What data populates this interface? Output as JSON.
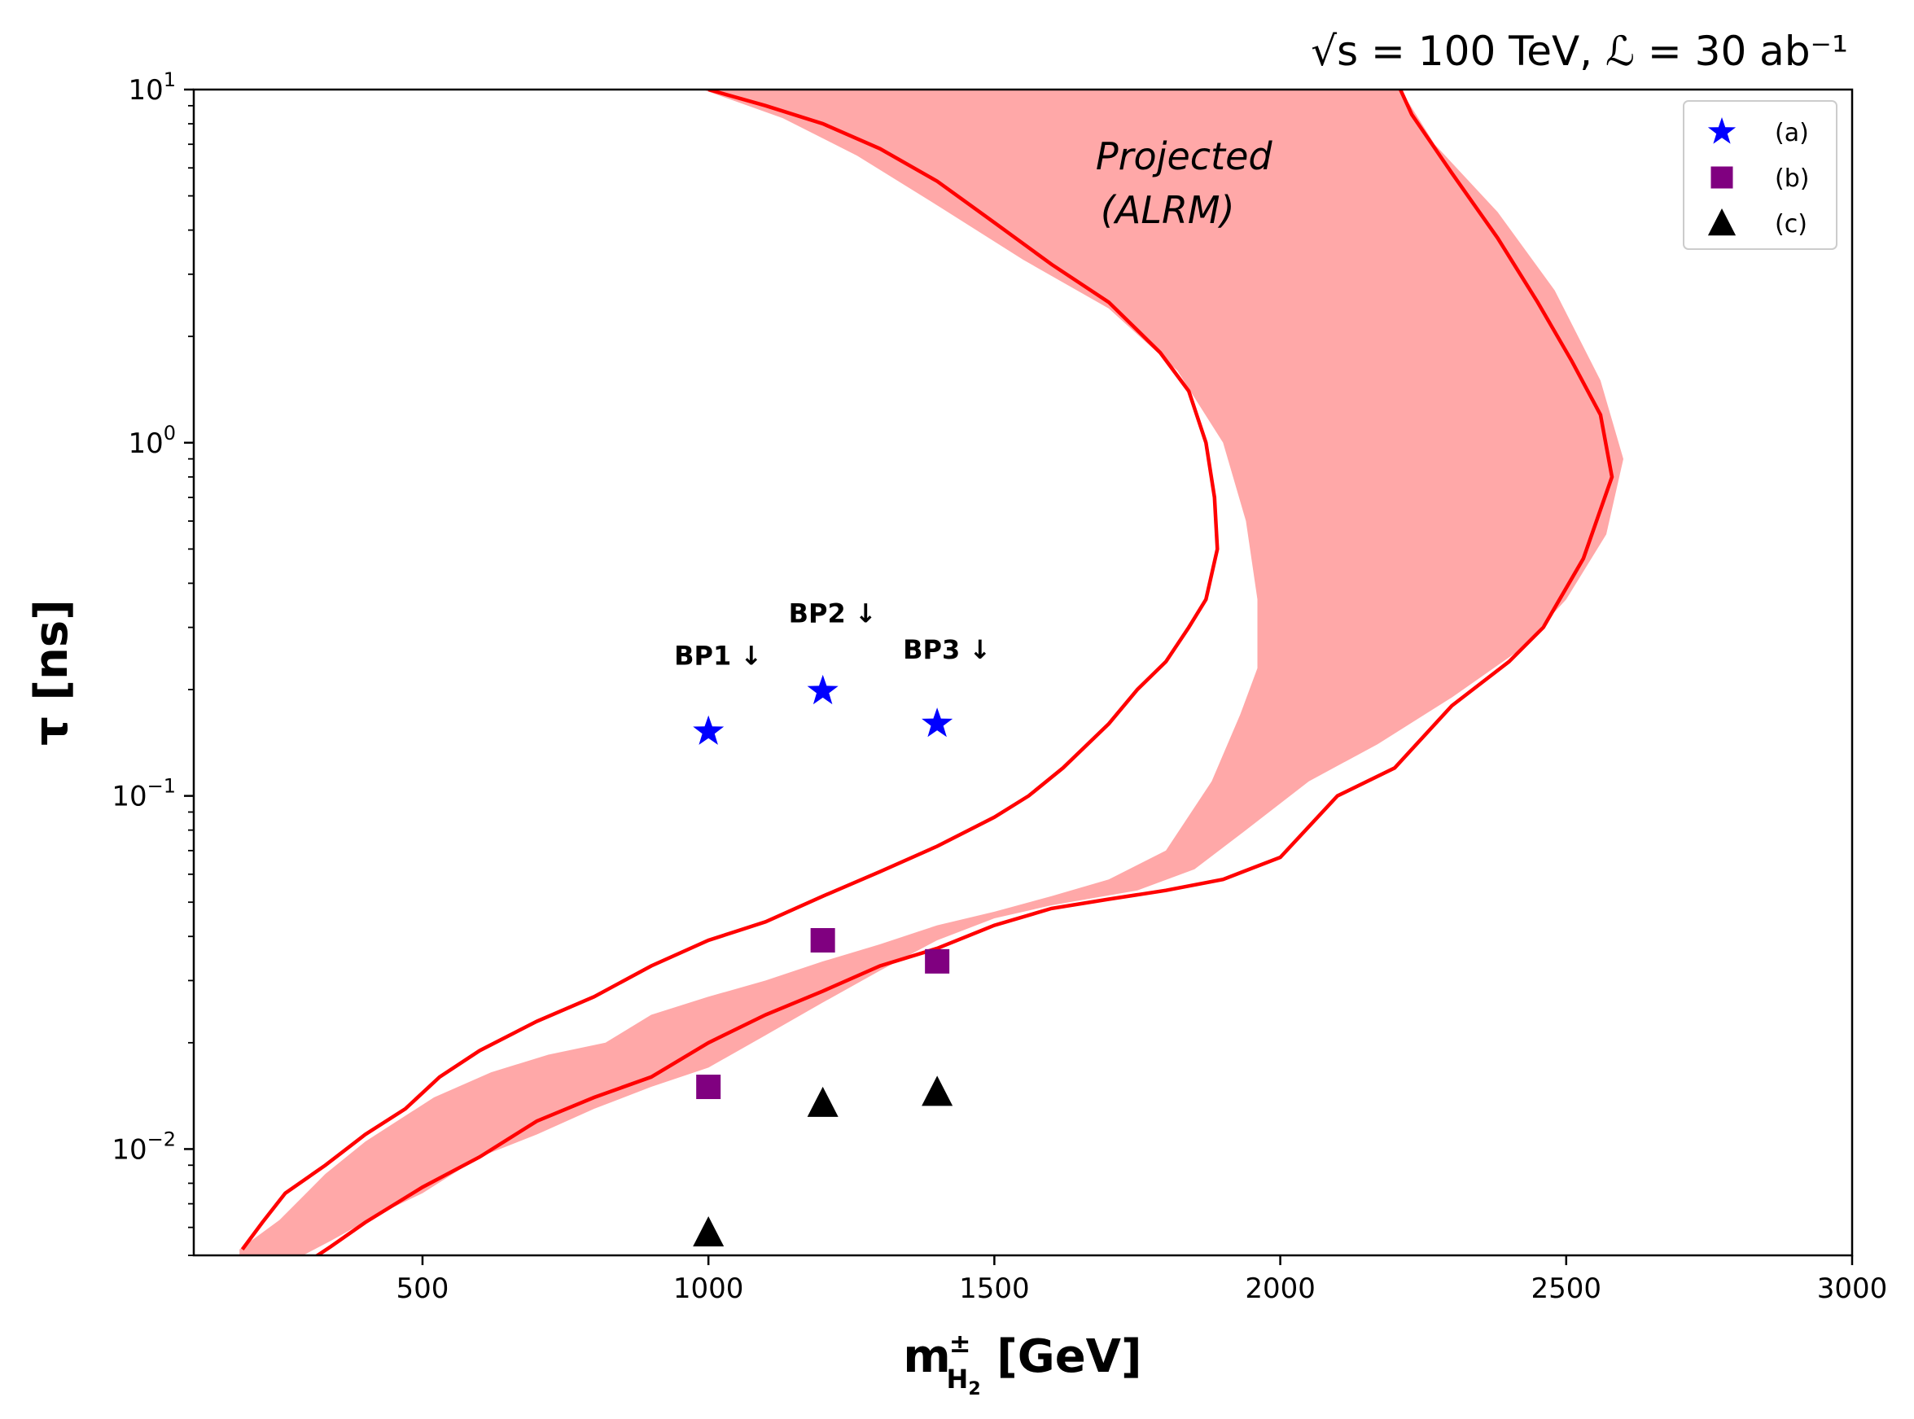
{
  "chart_data": {
    "type": "scatter",
    "title": "√s = 100 TeV,  ℒ = 30 ab⁻¹",
    "xlabel": "m",
    "xlabel_sup": "±",
    "xlabel_sub": "H",
    "xlabel_subsub": "2",
    "xlabel_unit": " [GeV]",
    "ylabel": "τ [ns]",
    "xlim": [
      100,
      3000
    ],
    "ylim": [
      0.005,
      10
    ],
    "yscale": "log",
    "x_ticks": [
      500,
      1000,
      1500,
      2000,
      2500,
      3000
    ],
    "x_tick_labels": [
      "500",
      "1000",
      "1500",
      "2000",
      "2500",
      "3000"
    ],
    "y_ticks": [
      0.01,
      0.1,
      1,
      10
    ],
    "y_tick_labels": [
      {
        "base": "10",
        "exp": "−2"
      },
      {
        "base": "10",
        "exp": "−1"
      },
      {
        "base": "10",
        "exp": "0"
      },
      {
        "base": "10",
        "exp": "1"
      }
    ],
    "grid": false,
    "legend_position": "top-right",
    "region": {
      "label_line1": "Projected",
      "label_line2": "(ALRM)",
      "label_pos": {
        "x": 1860,
        "tau": 4.7
      },
      "fill_color": "#ffa8a8",
      "upper_edge": [
        [
          180,
          0.0052
        ],
        [
          250,
          0.0063
        ],
        [
          330,
          0.0085
        ],
        [
          400,
          0.0105
        ],
        [
          520,
          0.014
        ],
        [
          620,
          0.0165
        ],
        [
          720,
          0.0185
        ],
        [
          820,
          0.02
        ],
        [
          900,
          0.024
        ],
        [
          1000,
          0.027
        ],
        [
          1100,
          0.03
        ],
        [
          1200,
          0.034
        ],
        [
          1300,
          0.038
        ],
        [
          1400,
          0.043
        ],
        [
          1500,
          0.047
        ],
        [
          1600,
          0.052
        ],
        [
          1700,
          0.058
        ],
        [
          1800,
          0.07
        ],
        [
          1880,
          0.11
        ],
        [
          1930,
          0.17
        ],
        [
          1960,
          0.23
        ],
        [
          1960,
          0.36
        ],
        [
          1940,
          0.6
        ],
        [
          1900,
          1.0
        ],
        [
          1820,
          1.6
        ],
        [
          1700,
          2.4
        ],
        [
          1550,
          3.3
        ],
        [
          1400,
          4.7
        ],
        [
          1260,
          6.5
        ],
        [
          1130,
          8.3
        ],
        [
          990,
          10
        ]
      ],
      "lower_edge": [
        [
          2210,
          10
        ],
        [
          2270,
          7.0
        ],
        [
          2380,
          4.5
        ],
        [
          2480,
          2.7
        ],
        [
          2560,
          1.5
        ],
        [
          2600,
          0.9
        ],
        [
          2570,
          0.55
        ],
        [
          2500,
          0.36
        ],
        [
          2420,
          0.26
        ],
        [
          2300,
          0.19
        ],
        [
          2170,
          0.14
        ],
        [
          2050,
          0.11
        ],
        [
          1940,
          0.08
        ],
        [
          1850,
          0.062
        ],
        [
          1750,
          0.054
        ],
        [
          1600,
          0.049
        ],
        [
          1500,
          0.045
        ],
        [
          1400,
          0.039
        ],
        [
          1300,
          0.032
        ],
        [
          1200,
          0.026
        ],
        [
          1100,
          0.021
        ],
        [
          1000,
          0.017
        ],
        [
          900,
          0.015
        ],
        [
          800,
          0.013
        ],
        [
          700,
          0.011
        ],
        [
          600,
          0.0095
        ],
        [
          500,
          0.0075
        ],
        [
          420,
          0.0065
        ],
        [
          340,
          0.0055
        ],
        [
          270,
          0.0048
        ],
        [
          180,
          0.0048
        ]
      ]
    },
    "contour": {
      "color": "#ff0000",
      "lower_curve": [
        [
          185,
          0.0052
        ],
        [
          220,
          0.0062
        ],
        [
          260,
          0.0075
        ],
        [
          330,
          0.009
        ],
        [
          400,
          0.011
        ],
        [
          470,
          0.013
        ],
        [
          530,
          0.016
        ],
        [
          600,
          0.019
        ],
        [
          700,
          0.023
        ],
        [
          800,
          0.027
        ],
        [
          900,
          0.033
        ],
        [
          1000,
          0.039
        ],
        [
          1100,
          0.044
        ],
        [
          1200,
          0.052
        ],
        [
          1300,
          0.061
        ],
        [
          1400,
          0.072
        ],
        [
          1500,
          0.087
        ],
        [
          1560,
          0.1
        ],
        [
          1620,
          0.12
        ],
        [
          1700,
          0.16
        ],
        [
          1750,
          0.2
        ],
        [
          1800,
          0.24
        ],
        [
          1840,
          0.3
        ],
        [
          1870,
          0.36
        ],
        [
          1890,
          0.5
        ],
        [
          1885,
          0.7
        ],
        [
          1870,
          1.0
        ],
        [
          1840,
          1.4
        ],
        [
          1790,
          1.8
        ],
        [
          1700,
          2.5
        ],
        [
          1600,
          3.2
        ],
        [
          1500,
          4.2
        ],
        [
          1400,
          5.5
        ],
        [
          1300,
          6.8
        ],
        [
          1200,
          8.0
        ],
        [
          1100,
          9.0
        ],
        [
          1000,
          10
        ]
      ],
      "upper_curve": [
        [
          300,
          0.0048
        ],
        [
          340,
          0.0053
        ],
        [
          400,
          0.0062
        ],
        [
          500,
          0.0078
        ],
        [
          600,
          0.0095
        ],
        [
          700,
          0.012
        ],
        [
          800,
          0.014
        ],
        [
          900,
          0.016
        ],
        [
          1000,
          0.02
        ],
        [
          1100,
          0.024
        ],
        [
          1200,
          0.028
        ],
        [
          1300,
          0.033
        ],
        [
          1400,
          0.037
        ],
        [
          1500,
          0.043
        ],
        [
          1600,
          0.048
        ],
        [
          1700,
          0.051
        ],
        [
          1800,
          0.054
        ],
        [
          1900,
          0.058
        ],
        [
          2000,
          0.067
        ],
        [
          2100,
          0.1
        ],
        [
          2200,
          0.12
        ],
        [
          2300,
          0.18
        ],
        [
          2400,
          0.24
        ],
        [
          2460,
          0.3
        ],
        [
          2530,
          0.47
        ],
        [
          2580,
          0.8
        ],
        [
          2560,
          1.2
        ],
        [
          2510,
          1.7
        ],
        [
          2450,
          2.5
        ],
        [
          2380,
          3.8
        ],
        [
          2300,
          5.8
        ],
        [
          2230,
          8.5
        ],
        [
          2210,
          10
        ]
      ]
    },
    "series": [
      {
        "name": "(a)",
        "marker": "star",
        "color": "#0000ff",
        "points": [
          [
            1000,
            0.152
          ],
          [
            1200,
            0.198
          ],
          [
            1400,
            0.16
          ]
        ]
      },
      {
        "name": "(b)",
        "marker": "square",
        "color": "#800080",
        "points": [
          [
            1000,
            0.015
          ],
          [
            1200,
            0.039
          ],
          [
            1400,
            0.034
          ]
        ]
      },
      {
        "name": "(c)",
        "marker": "triangle",
        "color": "#000000",
        "points": [
          [
            1000,
            0.0058
          ],
          [
            1200,
            0.0135
          ],
          [
            1400,
            0.0145
          ]
        ]
      }
    ],
    "annotations": [
      {
        "text": "BP1 ↓",
        "x": 1000,
        "tau": 0.235
      },
      {
        "text": "BP2 ↓",
        "x": 1200,
        "tau": 0.31
      },
      {
        "text": "BP3 ↓",
        "x": 1400,
        "tau": 0.245
      }
    ]
  }
}
